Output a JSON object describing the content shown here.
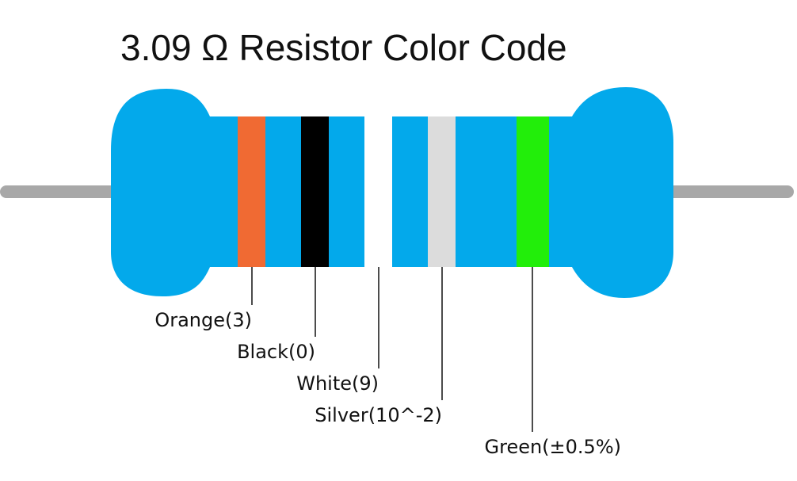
{
  "title": "3.09 Ω Resistor Color Code",
  "colors": {
    "body": "#03A9EB",
    "lead": "#A8A8A8",
    "callout_line": "#111111"
  },
  "bands": [
    {
      "name": "orange",
      "color": "#F06A33",
      "label": "Orange(3)"
    },
    {
      "name": "black",
      "color": "#000000",
      "label": "Black(0)"
    },
    {
      "name": "white",
      "color": "#FFFFFF",
      "label": "White(9)"
    },
    {
      "name": "silver",
      "color": "#DCDCDC",
      "label": "Silver(10^-2)"
    },
    {
      "name": "green",
      "color": "#22EE0A",
      "label": "Green(±0.5%)"
    }
  ]
}
